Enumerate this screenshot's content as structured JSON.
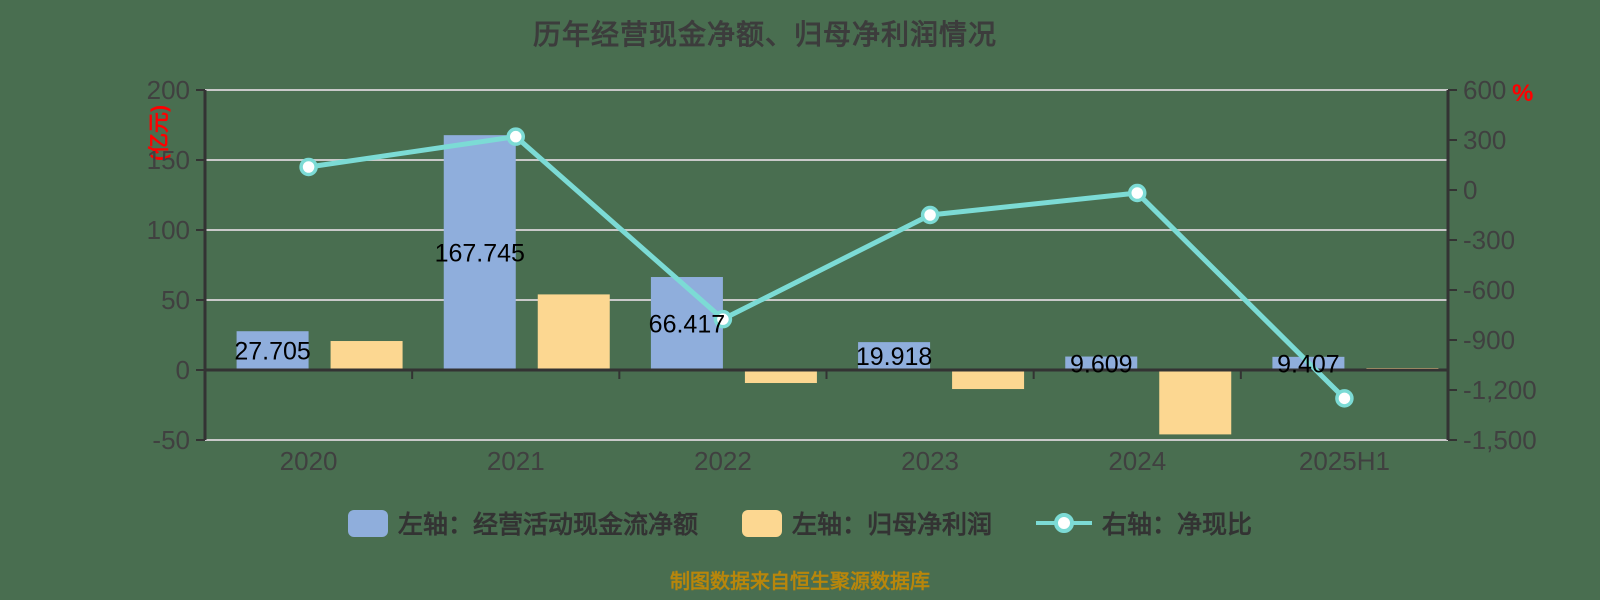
{
  "title": "历年经营现金净额、归母净利润情况",
  "footer": "制图数据来自恒生聚源数据库",
  "colors": {
    "background": "#496E50",
    "cashflow_bar": "#8FAEDC",
    "profit_bar": "#FCD791",
    "ratio_line": "#7CDBD5",
    "grid_line": "#C9C9C9",
    "axis_line": "#333333",
    "tick_label": "#404040",
    "data_label": "#000000",
    "axis_unit": "#FF0000",
    "footer_text": "#B8860B"
  },
  "legend": [
    {
      "label": "左轴：经营活动现金流净额",
      "marker": "bar",
      "color": "#8FAEDC",
      "name": "cashflow"
    },
    {
      "label": "左轴：归母净利润",
      "marker": "bar",
      "color": "#FCD791",
      "name": "profit"
    },
    {
      "label": "右轴：净现比",
      "marker": "line",
      "color": "#7CDBD5",
      "name": "ratio"
    }
  ],
  "chart_data": {
    "type": "bar+line combo",
    "categories": [
      "2020",
      "2021",
      "2022",
      "2023",
      "2024",
      "2025H1"
    ],
    "series": [
      {
        "name": "左轴：经营活动现金流净额",
        "type": "bar",
        "axis": "left",
        "color": "#8FAEDC",
        "values": [
          27.705,
          167.745,
          66.417,
          19.918,
          9.609,
          9.407
        ],
        "labels": [
          "27.705",
          "167.745",
          "66.417",
          "19.918",
          "9.609",
          "9.407"
        ]
      },
      {
        "name": "左轴：归母净利润",
        "type": "bar",
        "axis": "left",
        "color": "#FCD791",
        "values": [
          20.7,
          54.0,
          -9.3,
          -13.6,
          -46.0,
          -0.7
        ]
      },
      {
        "name": "右轴：净现比",
        "type": "line",
        "axis": "right",
        "color": "#7CDBD5",
        "values": [
          138,
          320,
          -775,
          -150,
          -18,
          -1250
        ]
      }
    ],
    "left_axis": {
      "label": "(亿元)",
      "min": -50,
      "max": 200,
      "ticks": [
        {
          "v": 200,
          "label": "200"
        },
        {
          "v": 150,
          "label": "150"
        },
        {
          "v": 100,
          "label": "100"
        },
        {
          "v": 50,
          "label": "50"
        },
        {
          "v": 0,
          "label": "0"
        },
        {
          "v": -50,
          "label": "-50"
        }
      ]
    },
    "right_axis": {
      "label": "%",
      "min": -1500,
      "max": 600,
      "ticks": [
        {
          "v": 600,
          "label": "600"
        },
        {
          "v": 300,
          "label": "300"
        },
        {
          "v": 0,
          "label": "0"
        },
        {
          "v": -300,
          "label": "-300"
        },
        {
          "v": -600,
          "label": "-600"
        },
        {
          "v": -900,
          "label": "-900"
        },
        {
          "v": -1200,
          "label": "-1,200"
        },
        {
          "v": -1500,
          "label": "-1,500"
        }
      ]
    },
    "grid": true,
    "legend_position": "bottom"
  }
}
